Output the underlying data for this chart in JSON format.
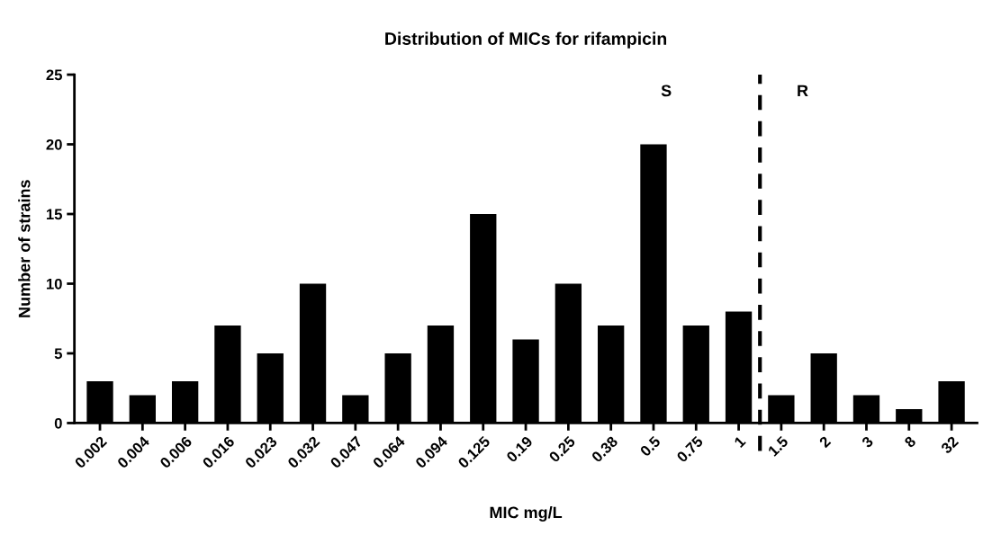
{
  "chart_data": {
    "type": "bar",
    "title": "Distribution of MICs for rifampicin",
    "xlabel": "MIC mg/L",
    "ylabel": "Number of strains",
    "categories": [
      "0.002",
      "0.004",
      "0.006",
      "0.016",
      "0.023",
      "0.032",
      "0.047",
      "0.064",
      "0.094",
      "0.125",
      "0.19",
      "0.25",
      "0.38",
      "0.5",
      "0.75",
      "1",
      "1.5",
      "2",
      "3",
      "8",
      "32"
    ],
    "values": [
      3,
      2,
      3,
      7,
      5,
      10,
      2,
      5,
      7,
      15,
      6,
      10,
      7,
      20,
      7,
      8,
      2,
      5,
      2,
      1,
      3
    ],
    "color": "#000000",
    "ylim": [
      0,
      25
    ],
    "yticks": [
      0,
      5,
      10,
      15,
      20,
      25
    ],
    "annotations": [
      "S",
      "R"
    ],
    "grid": false,
    "legend": false
  }
}
